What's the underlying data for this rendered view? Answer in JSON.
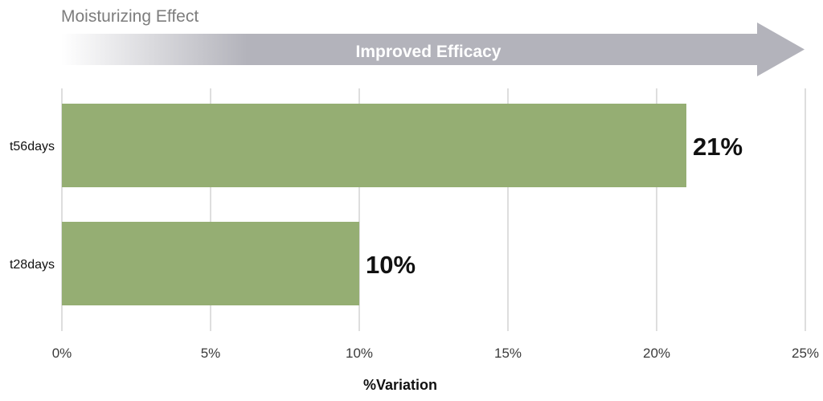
{
  "banner": {
    "title": "Moisturizing Effect",
    "arrow_label": "Improved Efficacy"
  },
  "colors": {
    "bar": "#95ae73",
    "grid": "#c9c9c9",
    "arrow": "#b3b3bb",
    "title_text": "#7d7d7d",
    "label_text": "#111111",
    "tick_text": "#3a3a3a",
    "arrow_text": "#ffffff"
  },
  "chart_data": {
    "type": "bar",
    "orientation": "horizontal",
    "categories": [
      "t56days",
      "t28days"
    ],
    "values": [
      21,
      10
    ],
    "value_labels": [
      "21%",
      "10%"
    ],
    "xlim": [
      0,
      25
    ],
    "xticks": [
      0,
      5,
      10,
      15,
      20,
      25
    ],
    "xtick_labels": [
      "0%",
      "5%",
      "10%",
      "15%",
      "20%",
      "25%"
    ],
    "xlabel": "%Variation",
    "ylabel": "",
    "grid": true
  }
}
